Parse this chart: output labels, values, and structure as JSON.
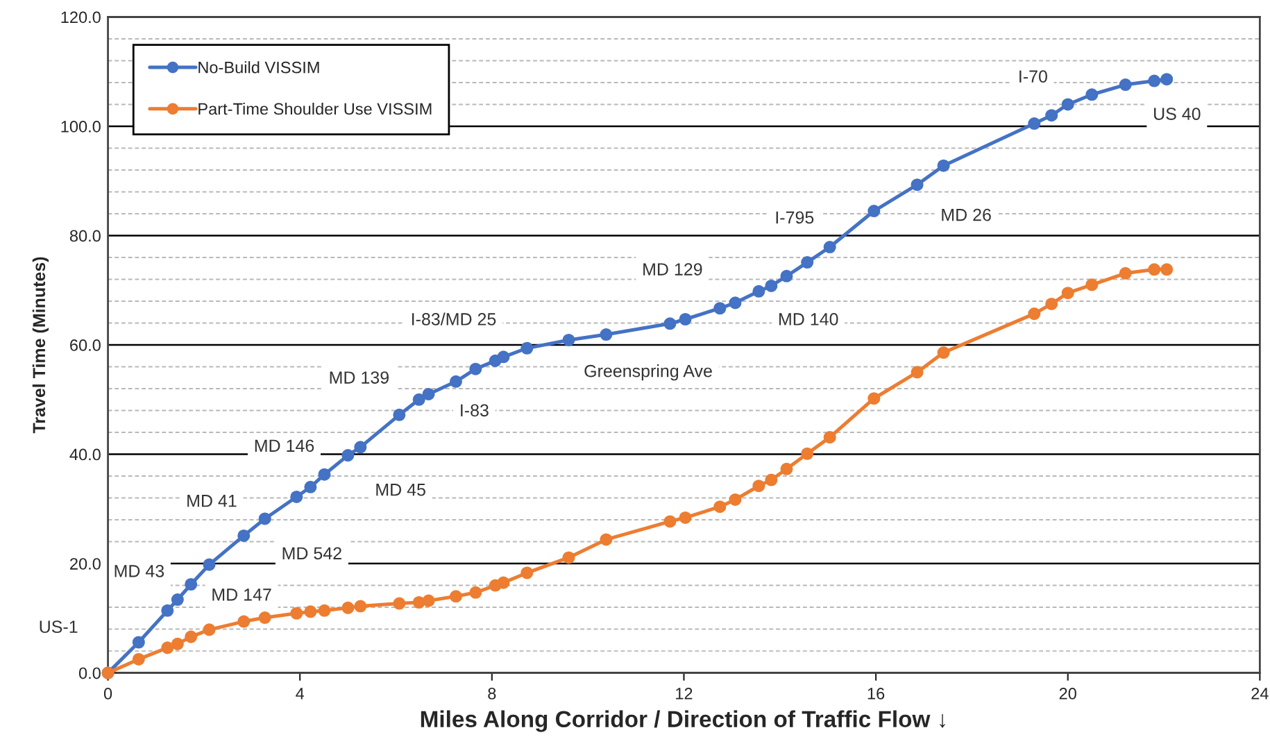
{
  "chart_data": {
    "type": "line",
    "x": [
      0,
      0.64,
      1.24,
      1.45,
      1.73,
      2.11,
      2.83,
      3.27,
      3.93,
      4.22,
      4.51,
      5.0,
      5.26,
      6.07,
      6.48,
      6.68,
      7.25,
      7.66,
      8.07,
      8.24,
      8.73,
      9.6,
      10.38,
      11.71,
      12.03,
      12.75,
      13.07,
      13.56,
      13.82,
      14.14,
      14.57,
      15.04,
      15.96,
      16.86,
      17.41,
      19.3,
      19.66,
      20.0,
      20.5,
      21.2,
      21.8,
      22.06
    ],
    "series": [
      {
        "name": "No-Build VISSIM",
        "color": "#4472c4",
        "values": [
          0,
          5.6,
          11.4,
          13.4,
          16.2,
          19.8,
          25.1,
          28.2,
          32.2,
          34.0,
          36.3,
          39.8,
          41.3,
          47.2,
          50.0,
          51.0,
          53.3,
          55.6,
          57.1,
          57.8,
          59.4,
          60.9,
          61.9,
          63.9,
          64.7,
          66.7,
          67.7,
          69.8,
          70.8,
          72.6,
          75.1,
          77.9,
          84.5,
          89.3,
          92.8,
          100.5,
          102.0,
          104.0,
          105.8,
          107.6,
          108.3,
          108.6
        ]
      },
      {
        "name": "Part-Time Shoulder Use VISSIM",
        "color": "#ed7d31",
        "values": [
          0,
          2.5,
          4.6,
          5.3,
          6.6,
          7.9,
          9.4,
          10.1,
          10.9,
          11.2,
          11.4,
          11.9,
          12.2,
          12.7,
          12.9,
          13.2,
          14.0,
          14.7,
          16.0,
          16.5,
          18.3,
          21.1,
          24.4,
          27.7,
          28.4,
          30.4,
          31.7,
          34.2,
          35.3,
          37.3,
          40.1,
          43.1,
          50.2,
          55.0,
          58.6,
          65.7,
          67.5,
          69.5,
          71.0,
          73.1,
          73.8,
          73.8
        ]
      }
    ],
    "xlabel": "Miles Along Corridor / Direction of Traffic Flow ↓",
    "ylabel": "Travel Time (Minutes)",
    "xlim": [
      0,
      24
    ],
    "xticks": [
      0,
      4,
      8,
      12,
      16,
      20,
      24
    ],
    "ylim": [
      0,
      120
    ],
    "yticks": [
      {
        "value": 0,
        "label": "0.0"
      },
      {
        "value": 4,
        "label": null
      },
      {
        "value": 8,
        "label": null
      },
      {
        "value": 12,
        "label": null
      },
      {
        "value": 16,
        "label": null
      },
      {
        "value": 20,
        "label": "20.0"
      },
      {
        "value": 24,
        "label": null
      },
      {
        "value": 28,
        "label": null
      },
      {
        "value": 32,
        "label": null
      },
      {
        "value": 36,
        "label": null
      },
      {
        "value": 40,
        "label": "40.0"
      },
      {
        "value": 44,
        "label": null
      },
      {
        "value": 48,
        "label": null
      },
      {
        "value": 52,
        "label": null
      },
      {
        "value": 56,
        "label": null
      },
      {
        "value": 60,
        "label": "60.0"
      },
      {
        "value": 64,
        "label": null
      },
      {
        "value": 68,
        "label": null
      },
      {
        "value": 72,
        "label": null
      },
      {
        "value": 76,
        "label": null
      },
      {
        "value": 80,
        "label": "80.0"
      },
      {
        "value": 84,
        "label": null
      },
      {
        "value": 88,
        "label": null
      },
      {
        "value": 92,
        "label": null
      },
      {
        "value": 96,
        "label": null
      },
      {
        "value": 100,
        "label": "100.0"
      },
      {
        "value": 104,
        "label": null
      },
      {
        "value": 108,
        "label": null
      },
      {
        "value": 112,
        "label": null
      },
      {
        "value": 116,
        "label": null
      },
      {
        "value": 120,
        "label": "120.0"
      }
    ],
    "grid": "y",
    "legend": "top left",
    "marker": "circle",
    "line_style": "solid",
    "annotations": [
      "US-1",
      "MD 43",
      "MD 147",
      "MD 542",
      "MD 41",
      "MD 45",
      "MD 146",
      "I-83",
      "MD 139",
      "I-83/MD 25",
      "Greenspring Ave",
      "MD 140",
      "MD 129",
      "I-795",
      "MD 26",
      "I-70",
      "US 40"
    ]
  }
}
